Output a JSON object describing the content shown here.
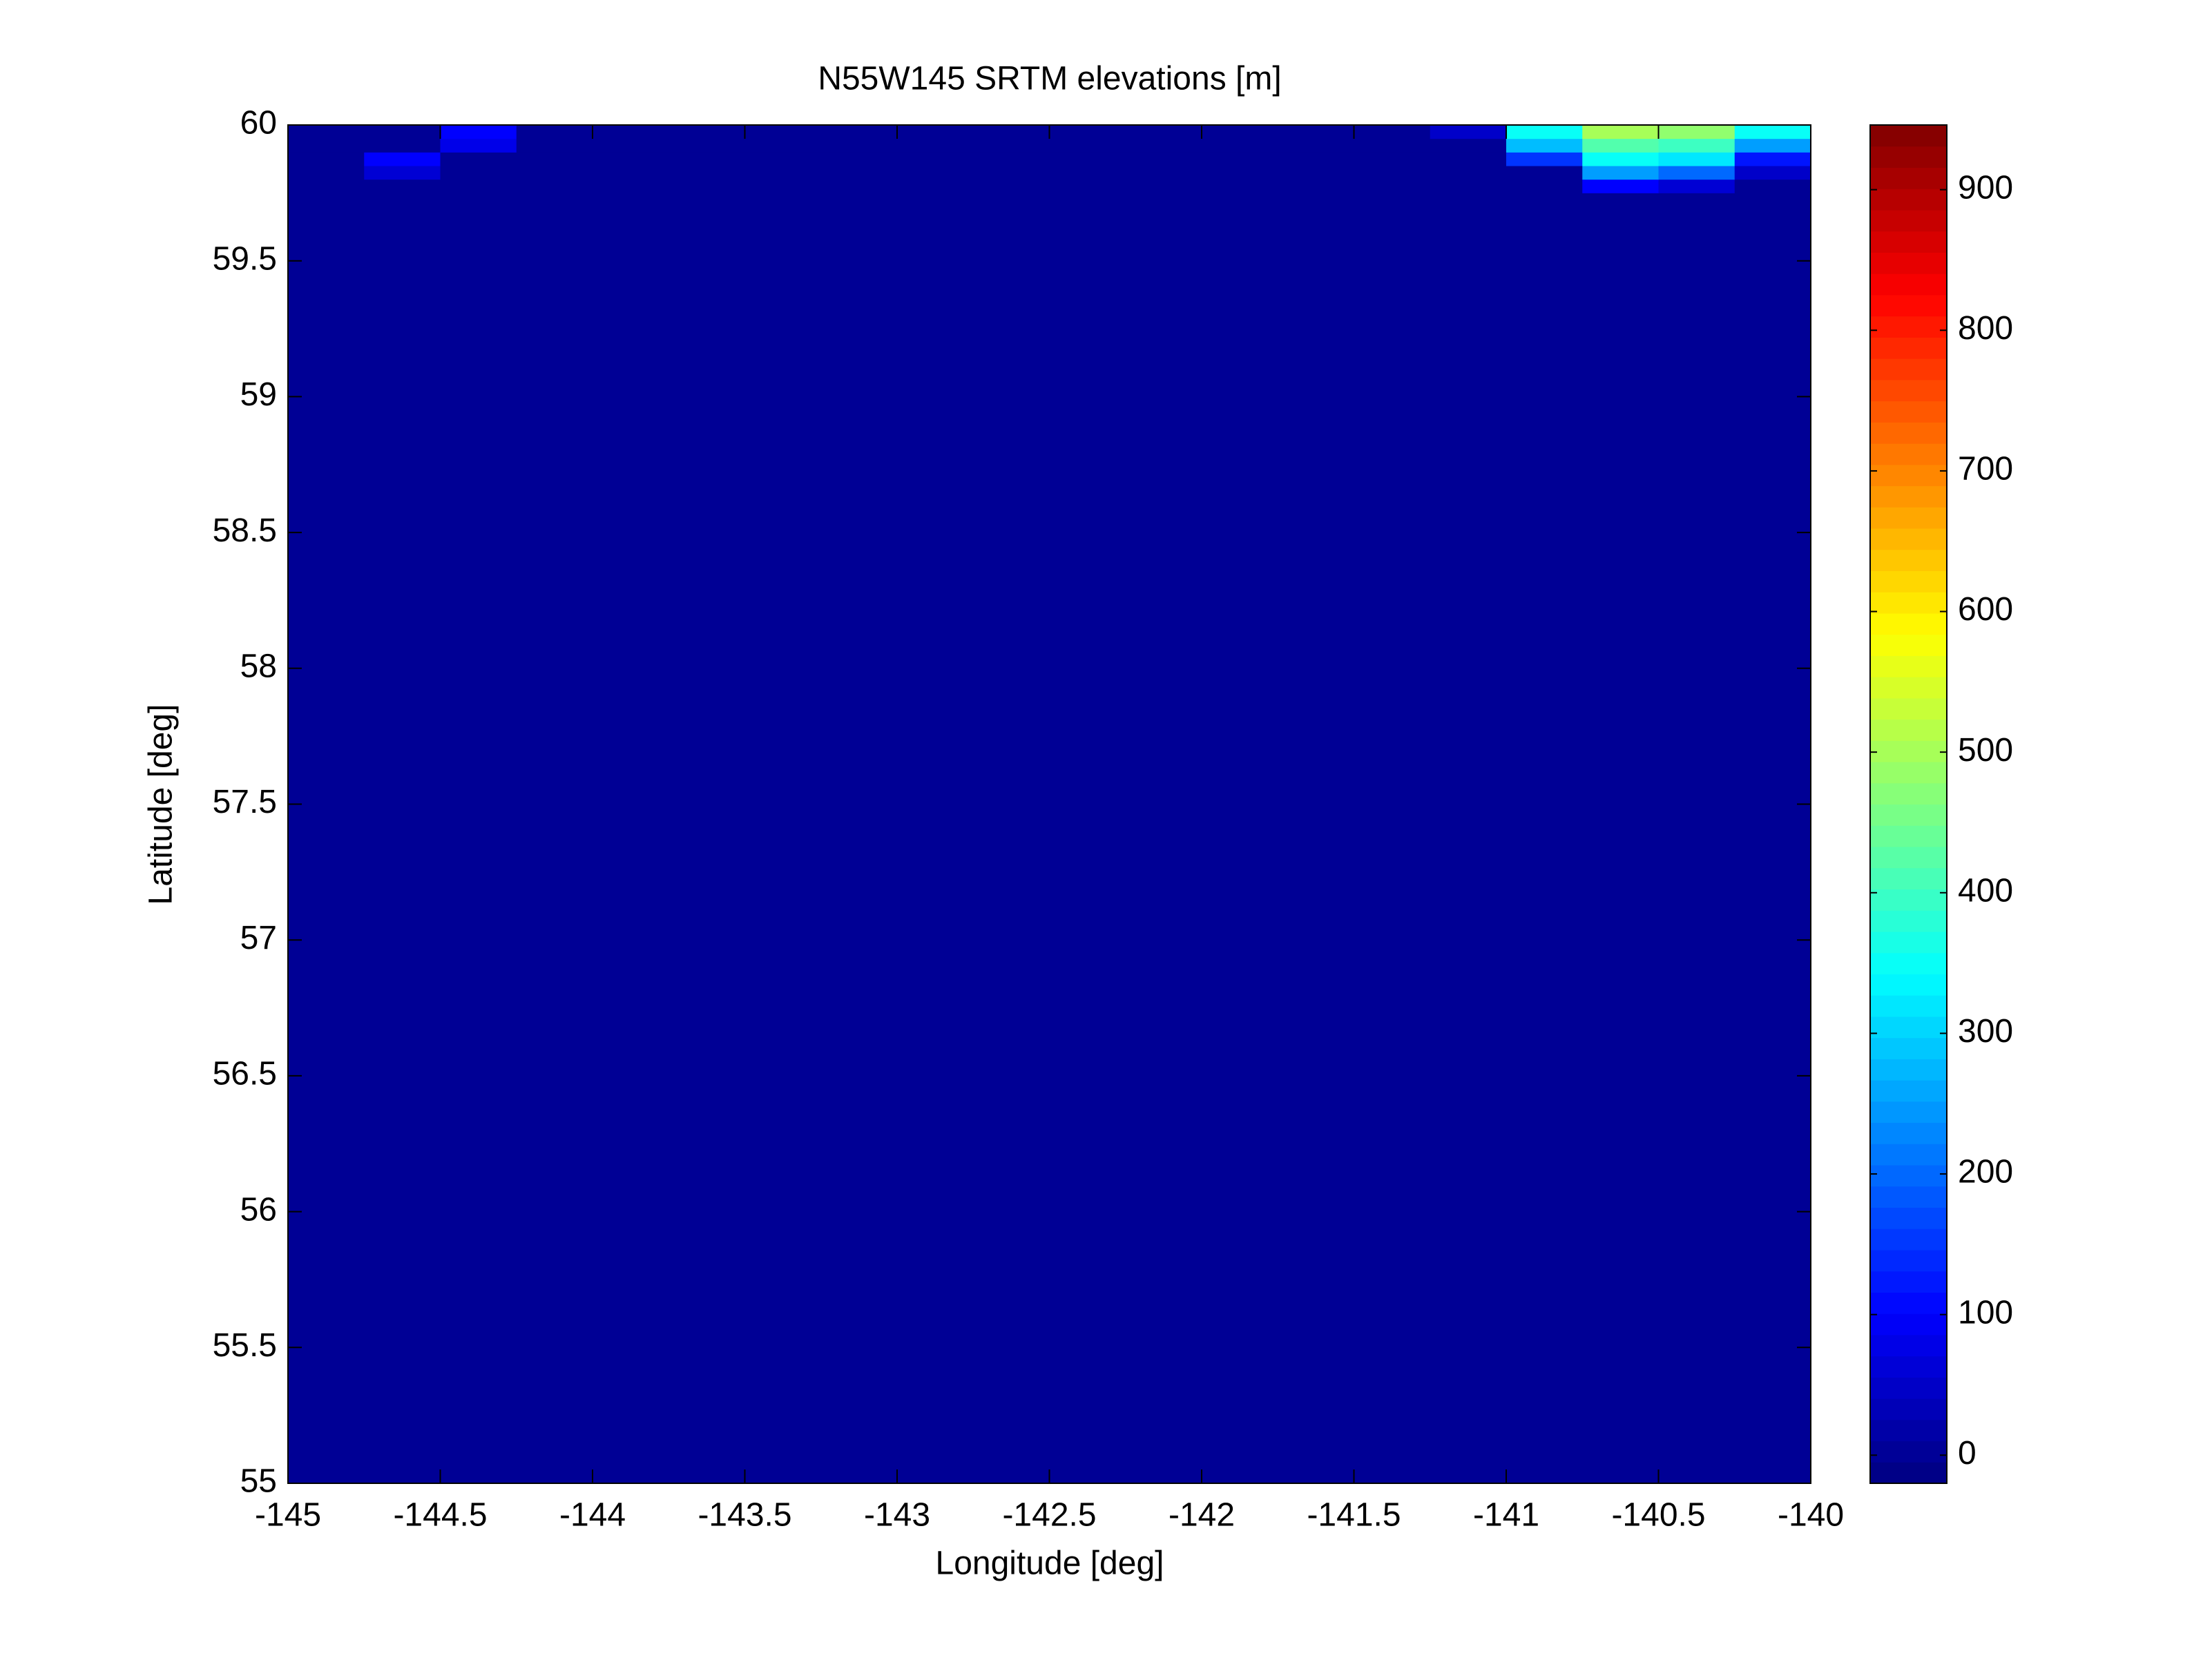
{
  "chart_data": {
    "type": "heatmap",
    "title": "N55W145 SRTM elevations [m]",
    "x_label": "Longitude [deg]",
    "y_label": "Latitude [deg]",
    "xlim": [
      -145,
      -140
    ],
    "ylim": [
      55,
      60
    ],
    "xticks": [
      -145,
      -144.5,
      -144,
      -143.5,
      -143,
      -142.5,
      -142,
      -141.5,
      -141,
      -140.5,
      -140
    ],
    "yticks": [
      55,
      55.5,
      56,
      56.5,
      57,
      57.5,
      58,
      58.5,
      59,
      59.5,
      60
    ],
    "x_edges": [
      -145,
      -144.75,
      -144.5,
      -144.25,
      -144,
      -143.75,
      -143.5,
      -143.25,
      -143,
      -142.75,
      -142.5,
      -142.25,
      -142,
      -141.75,
      -141.5,
      -141.25,
      -141,
      -140.75,
      -140.5,
      -140.25,
      -140
    ],
    "y_edges": [
      55,
      59.75,
      59.8,
      59.85,
      59.9,
      59.95,
      60
    ],
    "z": [
      [
        0,
        0,
        0,
        0,
        0,
        0,
        0,
        0,
        0,
        0,
        0,
        0,
        0,
        0,
        0,
        0,
        0,
        0,
        0,
        0
      ],
      [
        0,
        0,
        0,
        0,
        0,
        0,
        0,
        0,
        0,
        0,
        0,
        0,
        0,
        0,
        0,
        0,
        0,
        100,
        60,
        0
      ],
      [
        0,
        60,
        0,
        0,
        0,
        0,
        0,
        0,
        0,
        0,
        0,
        0,
        0,
        0,
        0,
        0,
        0,
        250,
        200,
        50
      ],
      [
        0,
        100,
        0,
        0,
        0,
        0,
        0,
        0,
        0,
        0,
        0,
        0,
        0,
        0,
        0,
        0,
        150,
        350,
        320,
        120
      ],
      [
        0,
        0,
        80,
        0,
        0,
        0,
        0,
        0,
        0,
        0,
        0,
        0,
        0,
        0,
        0,
        0,
        280,
        420,
        400,
        250
      ],
      [
        0,
        0,
        100,
        0,
        0,
        0,
        0,
        0,
        0,
        0,
        0,
        0,
        0,
        0,
        0,
        50,
        350,
        500,
        480,
        350
      ]
    ],
    "colormap": "jet",
    "clim": [
      -20,
      946
    ],
    "colorbar_ticks": [
      0,
      100,
      200,
      300,
      400,
      500,
      600,
      700,
      800,
      900
    ]
  }
}
